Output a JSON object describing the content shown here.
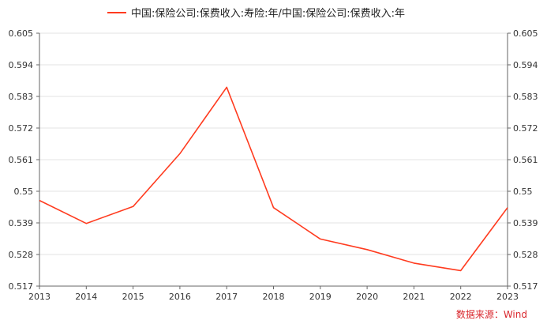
{
  "chart_data": {
    "type": "line",
    "title": "",
    "xlabel": "",
    "ylabel": "",
    "x": [
      "2013",
      "2014",
      "2015",
      "2016",
      "2017",
      "2018",
      "2019",
      "2020",
      "2021",
      "2022",
      "2023"
    ],
    "series": [
      {
        "name": "中国:保险公司:保费收入:寿险:年/中国:保险公司:保费收入:年",
        "values": [
          0.5468,
          0.5388,
          0.5447,
          0.5631,
          0.5862,
          0.5443,
          0.5334,
          0.5297,
          0.525,
          0.5224,
          0.5443
        ],
        "color": "#ff3b1f"
      }
    ],
    "ylim": [
      0.517,
      0.605
    ],
    "yticks": [
      "0.517",
      "0.528",
      "0.539",
      "0.55",
      "0.561",
      "0.572",
      "0.583",
      "0.594",
      "0.605"
    ],
    "legend_position": "top-center",
    "grid": "horizontal",
    "dual_y_axis": true,
    "source": "数据来源：Wind",
    "source_color": "#d9262c"
  }
}
